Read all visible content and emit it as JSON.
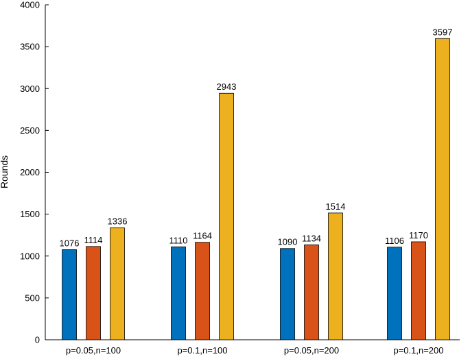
{
  "chart_data": {
    "type": "bar",
    "title": "",
    "xlabel": "",
    "ylabel": "Rounds",
    "ylim": [
      0,
      4000
    ],
    "yticks": [
      0,
      500,
      1000,
      1500,
      2000,
      2500,
      3000,
      3500,
      4000
    ],
    "categories": [
      "p=0.05,n=100",
      "p=0.1,n=100",
      "p=0.05,n=200",
      "p=0.1,n=200"
    ],
    "series": [
      {
        "color": "#0072BD",
        "values": [
          1076,
          1110,
          1090,
          1106
        ]
      },
      {
        "color": "#D95319",
        "values": [
          1114,
          1164,
          1134,
          1170
        ]
      },
      {
        "color": "#EDB120",
        "values": [
          1336,
          2943,
          1514,
          3597
        ]
      }
    ],
    "grid": false,
    "legend": "none"
  }
}
